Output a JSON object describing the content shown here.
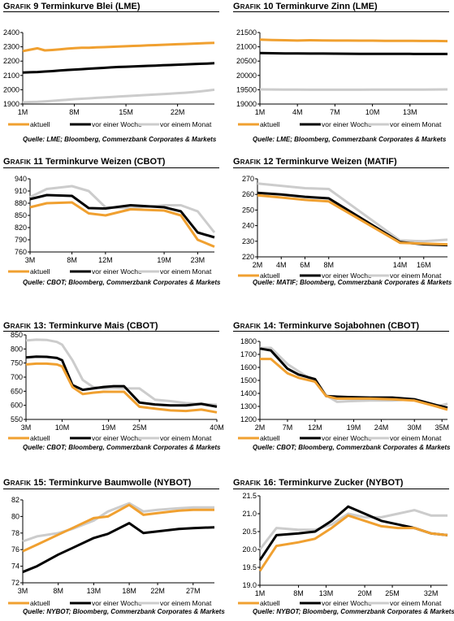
{
  "colors": {
    "aktuell": "#f0a030",
    "woche": "#000000",
    "monat": "#cccccc"
  },
  "legend": [
    "aktuell",
    "vor einer Woche",
    "vor einem Monat"
  ],
  "charts": [
    {
      "label_prefix": "Grafik",
      "number": "9",
      "title_text": "Terminkurve Blei (LME)",
      "source": "Quelle: LME; Bloomberg, Commerzbank Corporates & Markets",
      "chart_data": {
        "type": "line",
        "title": "Grafik 9: Terminkurve Blei (LME)",
        "x": [
          1,
          2,
          3,
          4,
          5,
          6,
          7,
          8,
          9,
          10,
          11,
          12,
          13,
          14,
          15,
          16,
          17,
          18,
          19,
          20,
          21,
          22,
          23,
          24,
          25,
          26,
          27
        ],
        "xlim": [
          1,
          27
        ],
        "xticks": [
          1,
          8,
          15,
          22
        ],
        "xticklabels": [
          "1M",
          "8M",
          "15M",
          "22M"
        ],
        "ylim": [
          1900,
          2400
        ],
        "yticks": [
          1900,
          2000,
          2100,
          2200,
          2300,
          2400
        ],
        "series": [
          {
            "name": "aktuell",
            "values": [
              2270,
              2280,
              2290,
              2275,
              2278,
              2282,
              2287,
              2291,
              2293,
              2294,
              2296,
              2298,
              2300,
              2302,
              2304,
              2306,
              2308,
              2310,
              2312,
              2314,
              2316,
              2318,
              2320,
              2322,
              2324,
              2326,
              2328
            ]
          },
          {
            "name": "vor einer Woche",
            "values": [
              2120,
              2122,
              2124,
              2127,
              2130,
              2134,
              2138,
              2141,
              2144,
              2147,
              2150,
              2153,
              2156,
              2159,
              2161,
              2163,
              2165,
              2167,
              2169,
              2171,
              2173,
              2175,
              2177,
              2179,
              2181,
              2183,
              2185
            ]
          },
          {
            "name": "vor einem Monat",
            "values": [
              1912,
              1914,
              1916,
              1919,
              1922,
              1926,
              1930,
              1934,
              1937,
              1940,
              1943,
              1946,
              1949,
              1952,
              1955,
              1958,
              1961,
              1964,
              1967,
              1970,
              1973,
              1976,
              1979,
              1983,
              1988,
              1994,
              2000
            ]
          }
        ]
      }
    },
    {
      "label_prefix": "Grafik",
      "number": "10",
      "title_text": "Terminkurve Zinn (LME)",
      "source": "Quelle: LME; Bloomberg, Commerzbank Corporates & Markets",
      "chart_data": {
        "type": "line",
        "title": "Grafik 10: Terminkurve Zinn (LME)",
        "x": [
          1,
          2,
          3,
          4,
          5,
          6,
          7,
          8,
          9,
          10,
          11,
          12,
          13,
          14,
          15,
          16
        ],
        "xlim": [
          1,
          16
        ],
        "xticks": [
          1,
          4,
          7,
          10,
          13
        ],
        "xticklabels": [
          "1M",
          "4M",
          "7M",
          "10M",
          "13M"
        ],
        "ylim": [
          19000,
          21500
        ],
        "yticks": [
          19000,
          19500,
          20000,
          20500,
          21000,
          21500
        ],
        "series": [
          {
            "name": "aktuell",
            "values": [
              21250,
              21240,
              21230,
              21220,
              21230,
              21225,
              21220,
              21220,
              21215,
              21215,
              21210,
              21210,
              21210,
              21205,
              21205,
              21200
            ]
          },
          {
            "name": "vor einer Woche",
            "values": [
              20780,
              20775,
              20770,
              20768,
              20765,
              20763,
              20760,
              20758,
              20756,
              20755,
              20754,
              20753,
              20752,
              20751,
              20750,
              20750
            ]
          },
          {
            "name": "vor einem Monat",
            "values": [
              19510,
              19508,
              19505,
              19503,
              19500,
              19500,
              19500,
              19500,
              19500,
              19502,
              19504,
              19505,
              19506,
              19507,
              19508,
              19510
            ]
          }
        ]
      }
    },
    {
      "label_prefix": "Grafik",
      "number": "11",
      "title_text": "Terminkurve Weizen (CBOT)",
      "source": "Quelle: CBOT; Bloomberg, Commerzbank Corporates & Markets",
      "chart_data": {
        "type": "line",
        "title": "Grafik 11: Terminkurve Weizen (CBOT)",
        "x": [
          3,
          5,
          8,
          10,
          12,
          15,
          19,
          21,
          23,
          25
        ],
        "xlim": [
          3,
          25
        ],
        "xticks": [
          3,
          8,
          12,
          19,
          23
        ],
        "xticklabels": [
          "3M",
          "8M",
          "12M",
          "19M",
          "23M"
        ],
        "ylim": [
          760,
          940
        ],
        "yticks": [
          760,
          790,
          820,
          850,
          880,
          910,
          940
        ],
        "series": [
          {
            "name": "aktuell",
            "values": [
              870,
              880,
              882,
              855,
              850,
              865,
              862,
              850,
              790,
              773
            ]
          },
          {
            "name": "vor einer Woche",
            "values": [
              890,
              900,
              898,
              868,
              867,
              875,
              870,
              860,
              808,
              796
            ]
          },
          {
            "name": "vor einem Monat",
            "values": [
              895,
              915,
              922,
              910,
              870,
              868,
              875,
              875,
              860,
              808
            ]
          }
        ]
      }
    },
    {
      "label_prefix": "Grafik",
      "number": "12",
      "title_text": "Terminkurve Weizen (MATIF)",
      "source": "Quelle: MATIF; Bloomberg, Commerzbank Corporates & Markets",
      "chart_data": {
        "type": "line",
        "title": "Grafik 12: Terminkurve Weizen (MATIF)",
        "x": [
          2,
          4,
          6,
          8,
          14,
          16,
          18
        ],
        "xlim": [
          2,
          18
        ],
        "xticks": [
          2,
          4,
          6,
          8,
          14,
          16
        ],
        "xticklabels": [
          "2M",
          "4M",
          "6M",
          "8M",
          "14M",
          "16M"
        ],
        "ylim": [
          220,
          270
        ],
        "yticks": [
          220,
          230,
          240,
          250,
          260,
          270
        ],
        "series": [
          {
            "name": "aktuell",
            "values": [
              259.5,
              258,
              256.5,
              255.5,
              229,
              228.5,
              228
            ]
          },
          {
            "name": "vor einer Woche",
            "values": [
              261,
              260,
              258.5,
              257.5,
              229.5,
              228,
              227.5
            ]
          },
          {
            "name": "vor einem Monat",
            "values": [
              267,
              265.5,
              264,
              263.5,
              230.5,
              230,
              231
            ]
          }
        ]
      }
    },
    {
      "label_prefix": "Grafik",
      "number": "13:",
      "title_text": "Terminkurve Mais (CBOT)",
      "source": "Quelle: CBOT; Bloomberg, Commerzbank Corporates & Markets",
      "chart_data": {
        "type": "line",
        "title": "Grafik 13: Terminkurve Mais (CBOT)",
        "x": [
          3,
          5,
          7,
          9,
          10,
          12,
          14,
          16,
          18,
          20,
          22,
          25,
          28,
          31,
          34,
          37,
          40
        ],
        "xlim": [
          3,
          40
        ],
        "xticks": [
          3,
          10,
          19,
          25,
          40
        ],
        "xticklabels": [
          "3M",
          "10M",
          "19M",
          "25M",
          "40M"
        ],
        "ylim": [
          550,
          850
        ],
        "yticks": [
          550,
          600,
          650,
          700,
          750,
          800,
          850
        ],
        "series": [
          {
            "name": "aktuell",
            "values": [
              745,
              748,
              748,
              745,
              738,
              665,
              640,
              645,
              648,
              648,
              648,
              595,
              588,
              582,
              580,
              585,
              575
            ]
          },
          {
            "name": "vor einer Woche",
            "values": [
              770,
              773,
              772,
              768,
              760,
              672,
              655,
              660,
              665,
              668,
              668,
              610,
              603,
              600,
              600,
              605,
              595
            ]
          },
          {
            "name": "vor einem Monat",
            "values": [
              830,
              833,
              832,
              825,
              815,
              760,
              690,
              665,
              660,
              662,
              660,
              660,
              620,
              615,
              608,
              605,
              602
            ]
          }
        ]
      }
    },
    {
      "label_prefix": "Grafik",
      "number": "14:",
      "title_text": "Terminkurve Sojabohnen (CBOT)",
      "source": "Quelle: CBOT; Bloomberg, Commerzbank Corporates & Markets",
      "chart_data": {
        "type": "line",
        "title": "Grafik 14: Terminkurve Sojabohnen (CBOT)",
        "x": [
          2,
          4,
          7,
          9,
          12,
          14,
          16,
          18,
          22,
          26,
          30,
          34,
          36
        ],
        "xlim": [
          2,
          36
        ],
        "xticks": [
          2,
          7,
          12,
          19,
          24,
          30,
          35
        ],
        "xticklabels": [
          "2M",
          "7M",
          "12M",
          "19M",
          "24M",
          "30M",
          "35M"
        ],
        "ylim": [
          1200,
          1800
        ],
        "yticks": [
          1200,
          1300,
          1400,
          1500,
          1600,
          1700,
          1800
        ],
        "series": [
          {
            "name": "aktuell",
            "values": [
              1665,
              1665,
              1555,
              1520,
              1490,
              1380,
              1360,
              1360,
              1360,
              1355,
              1345,
              1300,
              1275
            ]
          },
          {
            "name": "vor einer Woche",
            "values": [
              1745,
              1730,
              1590,
              1545,
              1510,
              1380,
              1375,
              1372,
              1368,
              1368,
              1355,
              1310,
              1290
            ]
          },
          {
            "name": "vor einem Monat",
            "values": [
              1750,
              1750,
              1625,
              1570,
              1490,
              1385,
              1335,
              1340,
              1345,
              1345,
              1355,
              1300,
              1320
            ]
          }
        ]
      }
    },
    {
      "label_prefix": "Grafik",
      "number": "15:",
      "title_text": "Terminkurve Baumwolle (NYBOT)",
      "source": "Quelle: NYBOT; Bloomberg, Commerzbank Corporates & Markets",
      "chart_data": {
        "type": "line",
        "title": "Grafik 15: Terminkurve Baumwolle (NYBOT)",
        "x": [
          3,
          5,
          8,
          10,
          13,
          15,
          18,
          20,
          22,
          25,
          27,
          30
        ],
        "xlim": [
          3,
          30
        ],
        "xticks": [
          3,
          8,
          13,
          18,
          22,
          27
        ],
        "xticklabels": [
          "3M",
          "8M",
          "13M",
          "18M",
          "22M",
          "27M"
        ],
        "ylim": [
          72,
          82
        ],
        "yticks": [
          72,
          74,
          76,
          78,
          80,
          82
        ],
        "series": [
          {
            "name": "aktuell",
            "values": [
              75.8,
              76.6,
              77.8,
              78.6,
              79.8,
              80,
              81.4,
              80.2,
              80.4,
              80.7,
              80.8,
              80.8
            ]
          },
          {
            "name": "vor einer Woche",
            "values": [
              73.3,
              74,
              75.4,
              76.2,
              77.4,
              77.9,
              79.2,
              78,
              78.2,
              78.5,
              78.6,
              78.7
            ]
          },
          {
            "name": "vor einem Monat",
            "values": [
              77,
              77.6,
              78,
              78.5,
              79.5,
              80.6,
              81.6,
              80.6,
              80.8,
              81,
              81.1,
              81.1
            ]
          }
        ]
      }
    },
    {
      "label_prefix": "Grafik",
      "number": "16:",
      "title_text": "Terminkurve Zucker (NYBOT)",
      "source": "Quelle: NYBOT; Bloomberg, Commerzbank Corporates & Markets",
      "chart_data": {
        "type": "line",
        "title": "Grafik 16: Terminkurve Zucker (NYBOT)",
        "x": [
          1,
          4,
          8,
          11,
          14,
          17,
          20,
          23,
          26,
          29,
          32,
          35
        ],
        "xlim": [
          1,
          35
        ],
        "xticks": [
          1,
          8,
          13,
          20,
          25,
          32
        ],
        "xticklabels": [
          "1M",
          "8M",
          "13M",
          "20M",
          "25M",
          "32M"
        ],
        "ylim": [
          19.0,
          21.5
        ],
        "yticks": [
          19.0,
          19.5,
          20.0,
          20.5,
          21.0,
          21.5
        ],
        "series": [
          {
            "name": "aktuell",
            "values": [
              19.4,
              20.1,
              20.2,
              20.3,
              20.6,
              20.95,
              20.8,
              20.65,
              20.6,
              20.6,
              20.45,
              20.4
            ]
          },
          {
            "name": "vor einer Woche",
            "values": [
              19.7,
              20.4,
              20.45,
              20.5,
              20.8,
              21.2,
              21.0,
              20.8,
              20.7,
              20.6,
              20.45,
              20.4
            ]
          },
          {
            "name": "vor einem Monat",
            "values": [
              20.0,
              20.6,
              20.55,
              20.55,
              20.7,
              21.0,
              20.9,
              20.9,
              21.0,
              21.1,
              20.95,
              20.95
            ]
          }
        ]
      }
    }
  ]
}
